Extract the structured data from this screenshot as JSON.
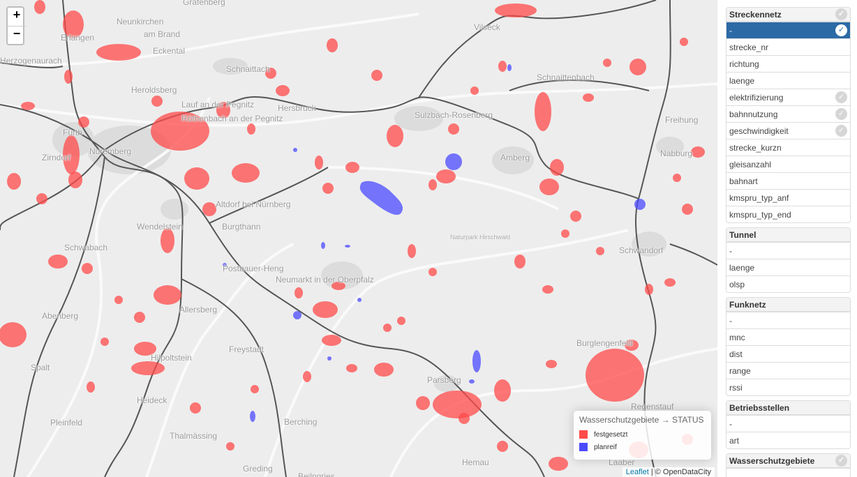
{
  "map": {
    "zoom_in_label": "+",
    "zoom_out_label": "−",
    "places": [
      {
        "name": "Gräfenberg"
      },
      {
        "name": "Neunkirchen"
      },
      {
        "name": "am Brand"
      },
      {
        "name": "Erlangen"
      },
      {
        "name": "Eckental"
      },
      {
        "name": "Herzogenaurach"
      },
      {
        "name": "Schnaittach"
      },
      {
        "name": "Vilseck"
      },
      {
        "name": "Schnaittenbach"
      },
      {
        "name": "Heroldsberg"
      },
      {
        "name": "Lauf an der Pegnitz"
      },
      {
        "name": "Hersbruck"
      },
      {
        "name": "Sulzbach-Rosenberg"
      },
      {
        "name": "Freihung"
      },
      {
        "name": "Fürth"
      },
      {
        "name": "Röthenbach an der Pegnitz"
      },
      {
        "name": "Nuremberg"
      },
      {
        "name": "Amberg"
      },
      {
        "name": "Nabburg"
      },
      {
        "name": "Zirndorf"
      },
      {
        "name": "Altdorf bei Nürnberg"
      },
      {
        "name": "Wendelstein"
      },
      {
        "name": "Burgthann"
      },
      {
        "name": "Naturpark Hirschwald"
      },
      {
        "name": "Schwabach"
      },
      {
        "name": "Schwandorf"
      },
      {
        "name": "Postbauer-Heng"
      },
      {
        "name": "Neumarkt in der Oberpfalz"
      },
      {
        "name": "Abenberg"
      },
      {
        "name": "Allersberg"
      },
      {
        "name": "Freystadt"
      },
      {
        "name": "Burglengenfeld"
      },
      {
        "name": "Spalt"
      },
      {
        "name": "Hilpoltstein"
      },
      {
        "name": "Parsberg"
      },
      {
        "name": "Heideck"
      },
      {
        "name": "Regenstauf"
      },
      {
        "name": "Pleinfeld"
      },
      {
        "name": "Berching"
      },
      {
        "name": "Thalmässing"
      },
      {
        "name": "Hemau"
      },
      {
        "name": "Greding"
      },
      {
        "name": "Beilngries"
      },
      {
        "name": "Laaber"
      }
    ]
  },
  "legend": {
    "title": "Wasserschutzgebiete → STATUS",
    "items": [
      {
        "label": "festgesetzt",
        "color": "#ff4a4a"
      },
      {
        "label": "planreif",
        "color": "#4a4aff"
      }
    ]
  },
  "attribution": {
    "link": "Leaflet",
    "separator": " | ",
    "text": "© OpenDataCity"
  },
  "panel": {
    "groups": [
      {
        "title": "Streckennetz",
        "items": [
          {
            "label": "-",
            "active": true,
            "check": true
          },
          {
            "label": "strecke_nr"
          },
          {
            "label": "richtung"
          },
          {
            "label": "laenge"
          },
          {
            "label": "elektrifizierung",
            "check": true
          },
          {
            "label": "bahnnutzung",
            "check": true
          },
          {
            "label": "geschwindigkeit",
            "check": true
          },
          {
            "label": "strecke_kurzn"
          },
          {
            "label": "gleisanzahl"
          },
          {
            "label": "bahnart"
          },
          {
            "label": "kmspru_typ_anf"
          },
          {
            "label": "kmspru_typ_end"
          }
        ]
      },
      {
        "title": "Tunnel",
        "items": [
          {
            "label": "-"
          },
          {
            "label": "laenge"
          },
          {
            "label": "olsp"
          }
        ]
      },
      {
        "title": "Funknetz",
        "items": [
          {
            "label": "-"
          },
          {
            "label": "mnc"
          },
          {
            "label": "dist"
          },
          {
            "label": "range"
          },
          {
            "label": "rssi"
          }
        ]
      },
      {
        "title": "Betriebsstellen",
        "items": [
          {
            "label": "-"
          },
          {
            "label": "art"
          }
        ]
      },
      {
        "title": "Wasserschutzgebiete",
        "items": [
          {
            "label": "-"
          }
        ]
      }
    ]
  }
}
